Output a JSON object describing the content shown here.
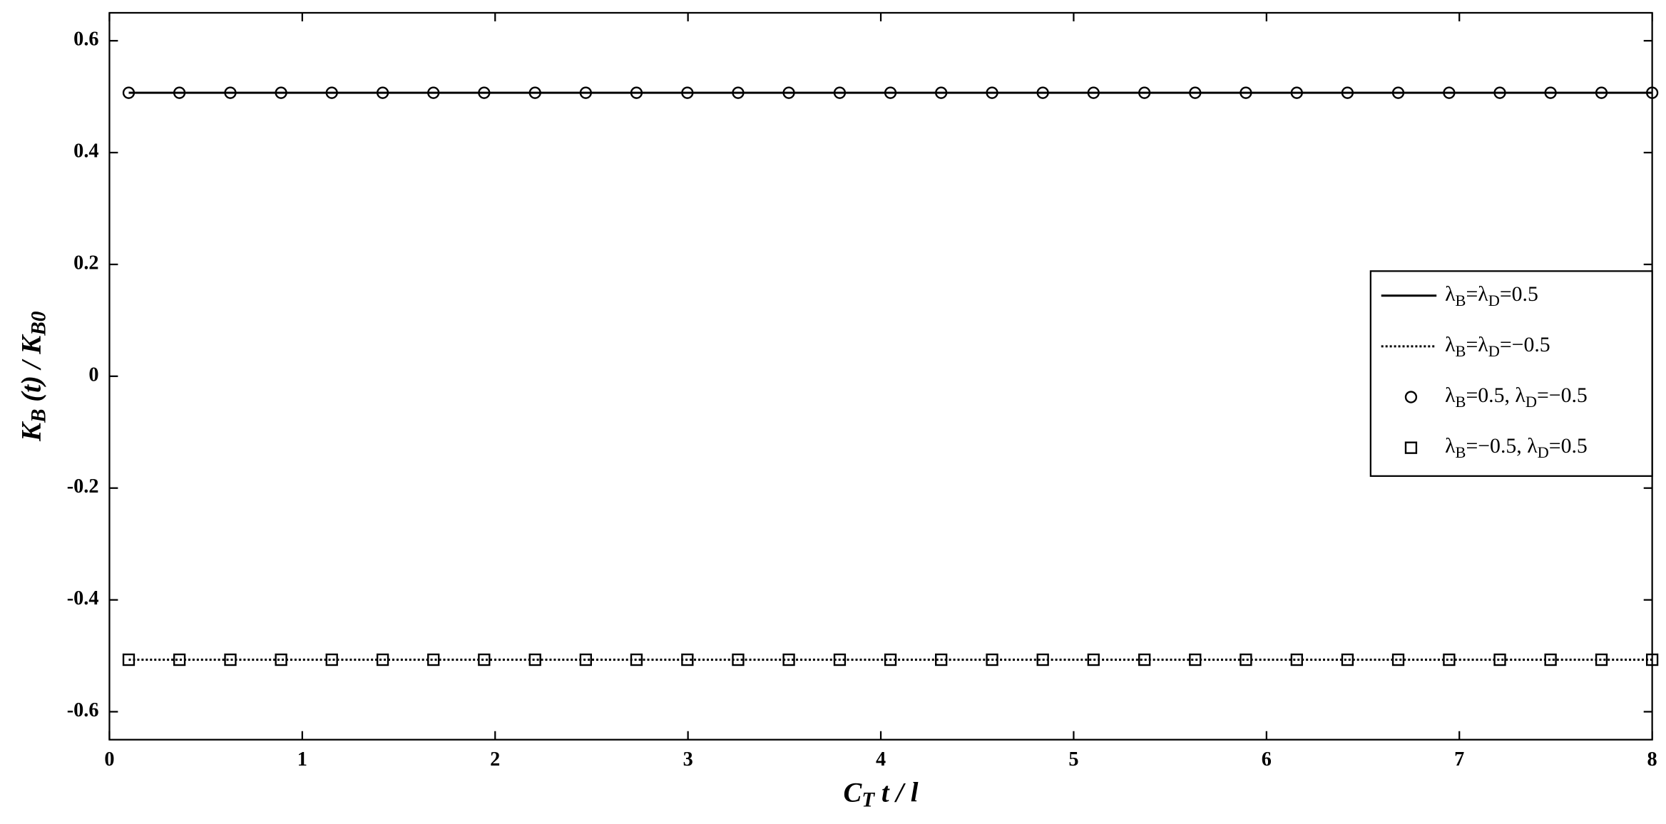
{
  "chart_data": {
    "type": "line",
    "x_label": "CT t / l",
    "y_label": "KB (t) / KB0",
    "x": [
      0.1,
      0.363,
      0.627,
      0.89,
      1.153,
      1.417,
      1.68,
      1.943,
      2.207,
      2.47,
      2.733,
      2.997,
      3.26,
      3.523,
      3.787,
      4.05,
      4.313,
      4.577,
      4.84,
      5.103,
      5.367,
      5.63,
      5.893,
      6.157,
      6.42,
      6.683,
      6.947,
      7.21,
      7.473,
      7.737,
      8.0
    ],
    "series": [
      {
        "name": "λB=λD=0.5",
        "color": "#000000",
        "line": "solid",
        "marker": "none",
        "values": [
          0.507,
          0.507,
          0.507,
          0.507,
          0.507,
          0.507,
          0.507,
          0.507,
          0.507,
          0.507,
          0.507,
          0.507,
          0.507,
          0.507,
          0.507,
          0.507,
          0.507,
          0.507,
          0.507,
          0.507,
          0.507,
          0.507,
          0.507,
          0.507,
          0.507,
          0.507,
          0.507,
          0.507,
          0.507,
          0.507,
          0.507
        ]
      },
      {
        "name": "λB=λD=−0.5",
        "color": "#000000",
        "line": "dotted",
        "marker": "none",
        "values": [
          -0.507,
          -0.507,
          -0.507,
          -0.507,
          -0.507,
          -0.507,
          -0.507,
          -0.507,
          -0.507,
          -0.507,
          -0.507,
          -0.507,
          -0.507,
          -0.507,
          -0.507,
          -0.507,
          -0.507,
          -0.507,
          -0.507,
          -0.507,
          -0.507,
          -0.507,
          -0.507,
          -0.507,
          -0.507,
          -0.507,
          -0.507,
          -0.507,
          -0.507,
          -0.507,
          -0.507
        ]
      },
      {
        "name": "λB=0.5,   λD=−0.5",
        "color": "#000000",
        "line": "none",
        "marker": "circle",
        "values": [
          0.507,
          0.507,
          0.507,
          0.507,
          0.507,
          0.507,
          0.507,
          0.507,
          0.507,
          0.507,
          0.507,
          0.507,
          0.507,
          0.507,
          0.507,
          0.507,
          0.507,
          0.507,
          0.507,
          0.507,
          0.507,
          0.507,
          0.507,
          0.507,
          0.507,
          0.507,
          0.507,
          0.507,
          0.507,
          0.507,
          0.507
        ]
      },
      {
        "name": "λB=−0.5,   λD=0.5",
        "color": "#000000",
        "line": "none",
        "marker": "square",
        "values": [
          -0.507,
          -0.507,
          -0.507,
          -0.507,
          -0.507,
          -0.507,
          -0.507,
          -0.507,
          -0.507,
          -0.507,
          -0.507,
          -0.507,
          -0.507,
          -0.507,
          -0.507,
          -0.507,
          -0.507,
          -0.507,
          -0.507,
          -0.507,
          -0.507,
          -0.507,
          -0.507,
          -0.507,
          -0.507,
          -0.507,
          -0.507,
          -0.507,
          -0.507,
          -0.507,
          -0.507
        ]
      }
    ],
    "xlim": [
      0,
      8
    ],
    "xticks": [
      0,
      1,
      2,
      3,
      4,
      5,
      6,
      7,
      8
    ],
    "ylim": [
      -0.65,
      0.65
    ],
    "yticks": [
      -0.6,
      -0.4,
      -0.2,
      0,
      0.2,
      0.4,
      0.6
    ],
    "grid": false,
    "legend": "right"
  }
}
